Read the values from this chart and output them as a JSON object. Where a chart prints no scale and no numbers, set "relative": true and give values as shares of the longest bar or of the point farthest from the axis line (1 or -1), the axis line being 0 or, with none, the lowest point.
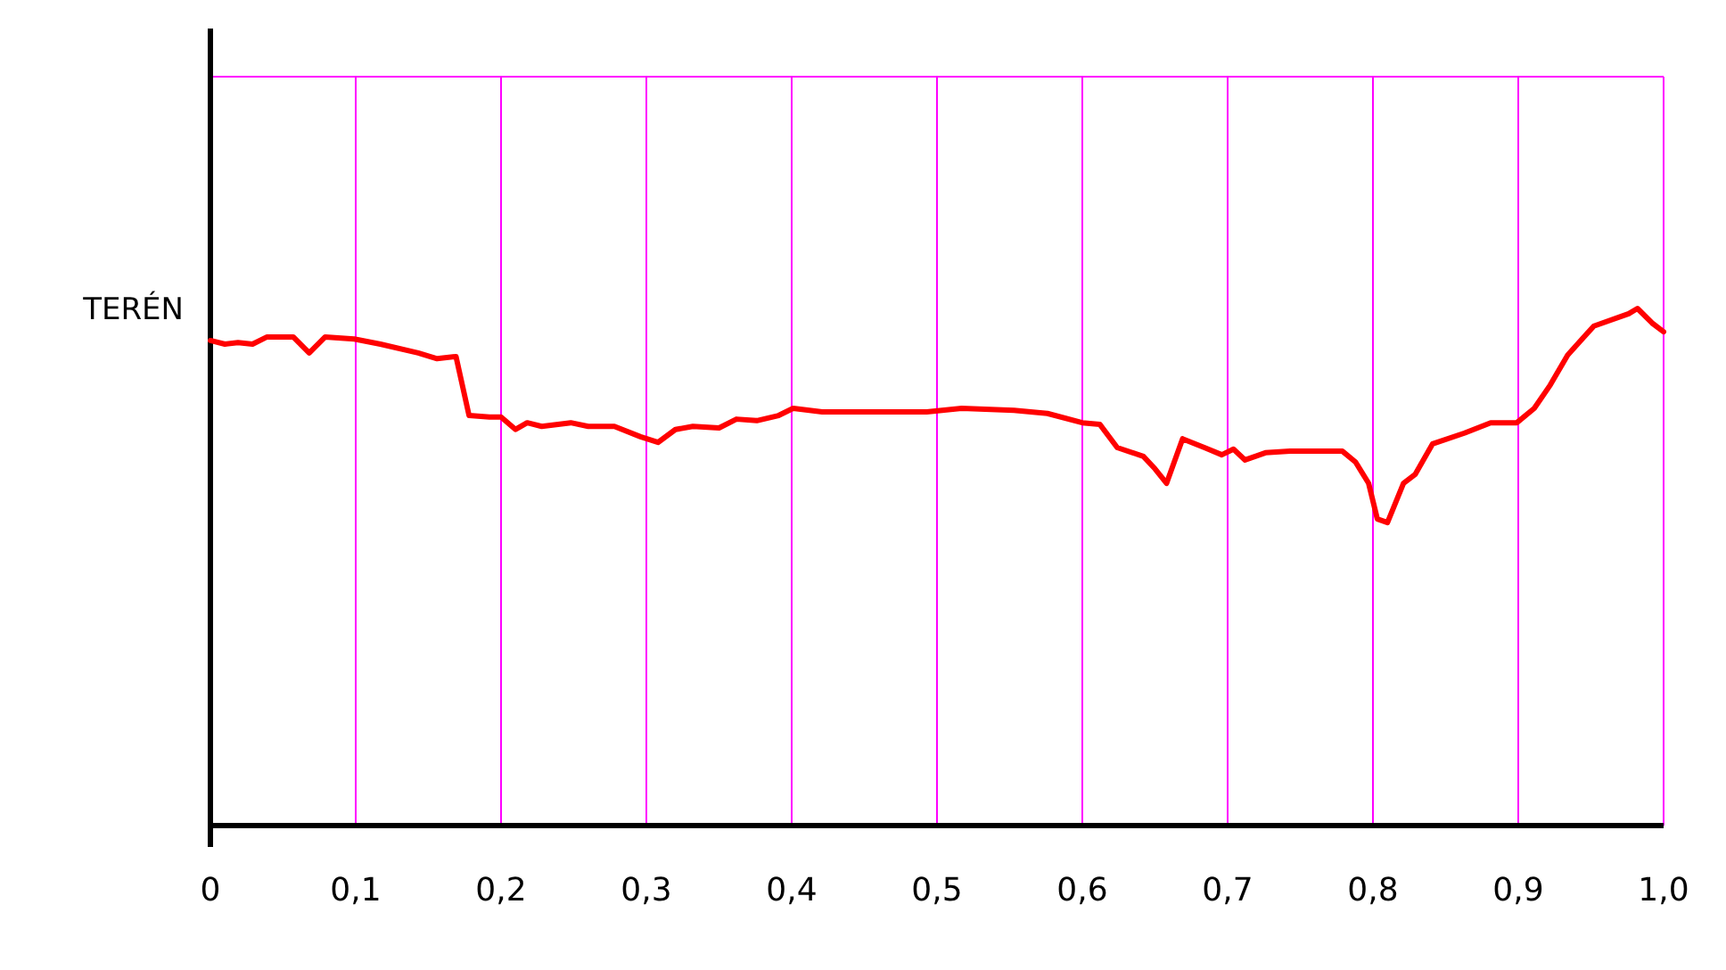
{
  "chart_data": {
    "type": "line",
    "relative": true,
    "grid": "x",
    "xlim": [
      0,
      1
    ],
    "xticks": [
      0,
      {
        "value": 0.1,
        "label": "0,1"
      },
      {
        "value": 0.2,
        "label": "0,2"
      },
      {
        "value": 0.3,
        "label": "0,3"
      },
      {
        "value": 0.4,
        "label": "0,4"
      },
      {
        "value": 0.5,
        "label": "0,5"
      },
      {
        "value": 0.6,
        "label": "0,6"
      },
      {
        "value": 0.7,
        "label": "0,7"
      },
      {
        "value": 0.8,
        "label": "0,8"
      },
      {
        "value": 0.9,
        "label": "0,9"
      },
      {
        "value": 1,
        "label": "1,0"
      }
    ],
    "marker": "none",
    "line_style": "solid",
    "series": [
      {
        "name": "TERÉN",
        "color": "#ff0000",
        "x": [
          0,
          0.01,
          0.019,
          0.029,
          0.039,
          0.057,
          0.068,
          0.079,
          0.099,
          0.117,
          0.143,
          0.156,
          0.169,
          0.178,
          0.192,
          0.2,
          0.21,
          0.218,
          0.228,
          0.248,
          0.26,
          0.278,
          0.296,
          0.308,
          0.32,
          0.332,
          0.35,
          0.362,
          0.376,
          0.391,
          0.401,
          0.421,
          0.445,
          0.469,
          0.493,
          0.517,
          0.553,
          0.576,
          0.6,
          0.612,
          0.624,
          0.642,
          0.65,
          0.658,
          0.669,
          0.684,
          0.696,
          0.704,
          0.712,
          0.726,
          0.743,
          0.779,
          0.788,
          0.797,
          0.803,
          0.81,
          0.821,
          0.829,
          0.841,
          0.863,
          0.881,
          0.899,
          0.911,
          0.922,
          0.934,
          0.952,
          0.976,
          0.982,
          0.992,
          1
        ],
        "values": [
          0.938,
          0.931,
          0.934,
          0.931,
          0.945,
          0.945,
          0.914,
          0.945,
          0.941,
          0.931,
          0.914,
          0.903,
          0.907,
          0.793,
          0.79,
          0.79,
          0.766,
          0.779,
          0.772,
          0.779,
          0.772,
          0.772,
          0.752,
          0.741,
          0.766,
          0.772,
          0.769,
          0.786,
          0.783,
          0.793,
          0.807,
          0.8,
          0.8,
          0.8,
          0.8,
          0.807,
          0.803,
          0.797,
          0.779,
          0.776,
          0.731,
          0.714,
          0.69,
          0.662,
          0.748,
          0.731,
          0.717,
          0.728,
          0.707,
          0.721,
          0.724,
          0.724,
          0.703,
          0.662,
          0.593,
          0.586,
          0.662,
          0.679,
          0.738,
          0.759,
          0.779,
          0.779,
          0.807,
          0.852,
          0.91,
          0.966,
          0.99,
          1,
          0.972,
          0.955
        ]
      }
    ]
  }
}
